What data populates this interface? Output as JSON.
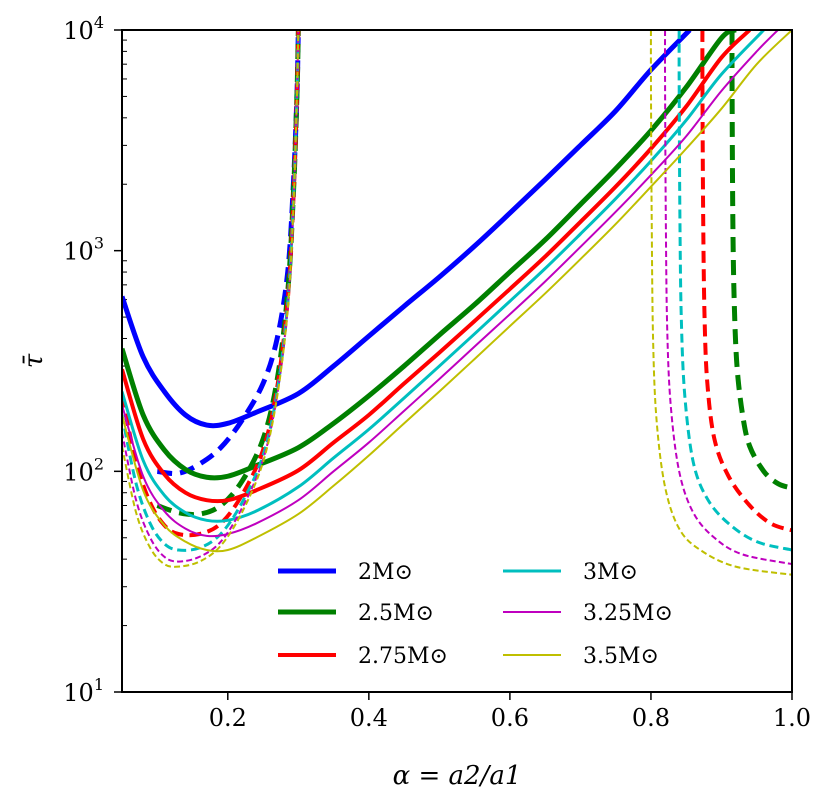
{
  "chart_data": {
    "type": "line",
    "title": "",
    "xlabel": "α = a2/a1",
    "ylabel": "τ̄",
    "xlim": [
      0.05,
      1.0
    ],
    "ylim": [
      10,
      10000
    ],
    "yscale": "log",
    "xticks": [
      {
        "value": 0.2,
        "label": "0.2"
      },
      {
        "value": 0.4,
        "label": "0.4"
      },
      {
        "value": 0.6,
        "label": "0.6"
      },
      {
        "value": 0.8,
        "label": "0.8"
      },
      {
        "value": 1.0,
        "label": "1.0"
      }
    ],
    "yticks": [
      {
        "value": 10,
        "base": "10",
        "exp": "1"
      },
      {
        "value": 100,
        "base": "10",
        "exp": "2"
      },
      {
        "value": 1000,
        "base": "10",
        "exp": "3"
      },
      {
        "value": 10000,
        "base": "10",
        "exp": "4"
      }
    ],
    "legend": {
      "position": "bottom-center",
      "columns": 2
    },
    "series": [
      {
        "name": "2M⊙",
        "mass": "2",
        "color": "#0000ff",
        "width": 5,
        "solid": [
          [
            0.05,
            620
          ],
          [
            0.08,
            330
          ],
          [
            0.11,
            230
          ],
          [
            0.14,
            180
          ],
          [
            0.17,
            162
          ],
          [
            0.2,
            165
          ],
          [
            0.24,
            185
          ],
          [
            0.3,
            225
          ],
          [
            0.35,
            300
          ],
          [
            0.4,
            410
          ],
          [
            0.45,
            560
          ],
          [
            0.5,
            760
          ],
          [
            0.55,
            1050
          ],
          [
            0.6,
            1480
          ],
          [
            0.65,
            2100
          ],
          [
            0.7,
            3000
          ],
          [
            0.75,
            4300
          ],
          [
            0.8,
            6600
          ],
          [
            0.855,
            10000
          ]
        ],
        "dashed_left": [
          [
            0.1,
            100
          ],
          [
            0.13,
            98
          ],
          [
            0.16,
            108
          ],
          [
            0.19,
            128
          ],
          [
            0.22,
            170
          ],
          [
            0.25,
            250
          ],
          [
            0.27,
            400
          ],
          [
            0.285,
            800
          ],
          [
            0.293,
            2000
          ],
          [
            0.298,
            5000
          ],
          [
            0.3,
            10000
          ]
        ],
        "dashed_right": []
      },
      {
        "name": "2.5M⊙",
        "mass": "2.5",
        "color": "#008000",
        "width": 5,
        "solid": [
          [
            0.05,
            360
          ],
          [
            0.08,
            180
          ],
          [
            0.11,
            125
          ],
          [
            0.14,
            102
          ],
          [
            0.17,
            94
          ],
          [
            0.2,
            95
          ],
          [
            0.24,
            106
          ],
          [
            0.3,
            128
          ],
          [
            0.35,
            165
          ],
          [
            0.4,
            220
          ],
          [
            0.45,
            300
          ],
          [
            0.5,
            415
          ],
          [
            0.55,
            570
          ],
          [
            0.6,
            800
          ],
          [
            0.65,
            1120
          ],
          [
            0.7,
            1620
          ],
          [
            0.75,
            2350
          ],
          [
            0.8,
            3500
          ],
          [
            0.85,
            5500
          ],
          [
            0.9,
            9200
          ],
          [
            0.92,
            10000
          ]
        ],
        "dashed_left": [
          [
            0.1,
            70
          ],
          [
            0.13,
            65
          ],
          [
            0.16,
            64
          ],
          [
            0.19,
            70
          ],
          [
            0.22,
            90
          ],
          [
            0.25,
            140
          ],
          [
            0.27,
            260
          ],
          [
            0.285,
            650
          ],
          [
            0.293,
            1800
          ],
          [
            0.298,
            5000
          ],
          [
            0.3,
            10000
          ]
        ],
        "dashed_right": [
          [
            0.915,
            10000
          ],
          [
            0.915,
            6000
          ],
          [
            0.916,
            1500
          ],
          [
            0.918,
            600
          ],
          [
            0.922,
            300
          ],
          [
            0.93,
            180
          ],
          [
            0.94,
            130
          ],
          [
            0.96,
            100
          ],
          [
            0.98,
            88
          ],
          [
            1.0,
            84
          ]
        ]
      },
      {
        "name": "2.75M⊙",
        "mass": "2.75",
        "color": "#ff0000",
        "width": 4,
        "solid": [
          [
            0.05,
            290
          ],
          [
            0.08,
            140
          ],
          [
            0.11,
            97
          ],
          [
            0.14,
            80
          ],
          [
            0.17,
            74
          ],
          [
            0.2,
            74
          ],
          [
            0.24,
            82
          ],
          [
            0.3,
            101
          ],
          [
            0.35,
            135
          ],
          [
            0.4,
            180
          ],
          [
            0.45,
            250
          ],
          [
            0.5,
            345
          ],
          [
            0.55,
            480
          ],
          [
            0.6,
            670
          ],
          [
            0.65,
            940
          ],
          [
            0.7,
            1350
          ],
          [
            0.75,
            1950
          ],
          [
            0.8,
            2900
          ],
          [
            0.85,
            4500
          ],
          [
            0.9,
            7500
          ],
          [
            0.94,
            10000
          ]
        ],
        "dashed_left": [
          [
            0.05,
            220
          ],
          [
            0.07,
            110
          ],
          [
            0.09,
            72
          ],
          [
            0.11,
            57
          ],
          [
            0.13,
            52
          ],
          [
            0.16,
            52
          ],
          [
            0.19,
            58
          ],
          [
            0.22,
            78
          ],
          [
            0.25,
            125
          ],
          [
            0.27,
            240
          ],
          [
            0.285,
            600
          ],
          [
            0.293,
            1700
          ],
          [
            0.298,
            5000
          ],
          [
            0.3,
            10000
          ]
        ],
        "dashed_right": [
          [
            0.873,
            10000
          ],
          [
            0.873,
            6000
          ],
          [
            0.874,
            1500
          ],
          [
            0.876,
            500
          ],
          [
            0.88,
            250
          ],
          [
            0.89,
            140
          ],
          [
            0.91,
            95
          ],
          [
            0.94,
            70
          ],
          [
            0.97,
            58
          ],
          [
            1.0,
            54
          ]
        ]
      },
      {
        "name": "3M⊙",
        "mass": "3",
        "color": "#00bfbf",
        "width": 3,
        "solid": [
          [
            0.05,
            230
          ],
          [
            0.08,
            112
          ],
          [
            0.11,
            78
          ],
          [
            0.14,
            65
          ],
          [
            0.17,
            60
          ],
          [
            0.2,
            60
          ],
          [
            0.24,
            66
          ],
          [
            0.3,
            85
          ],
          [
            0.35,
            115
          ],
          [
            0.4,
            155
          ],
          [
            0.45,
            215
          ],
          [
            0.5,
            300
          ],
          [
            0.55,
            420
          ],
          [
            0.6,
            590
          ],
          [
            0.65,
            830
          ],
          [
            0.7,
            1190
          ],
          [
            0.75,
            1720
          ],
          [
            0.8,
            2550
          ],
          [
            0.85,
            3900
          ],
          [
            0.9,
            6300
          ],
          [
            0.96,
            10000
          ]
        ],
        "dashed_left": [
          [
            0.05,
            180
          ],
          [
            0.07,
            88
          ],
          [
            0.09,
            58
          ],
          [
            0.11,
            47
          ],
          [
            0.13,
            44
          ],
          [
            0.16,
            45
          ],
          [
            0.19,
            52
          ],
          [
            0.22,
            72
          ],
          [
            0.25,
            118
          ],
          [
            0.27,
            230
          ],
          [
            0.285,
            580
          ],
          [
            0.293,
            1650
          ],
          [
            0.298,
            5000
          ],
          [
            0.3,
            10000
          ]
        ],
        "dashed_right": [
          [
            0.84,
            10000
          ],
          [
            0.84,
            6000
          ],
          [
            0.841,
            1500
          ],
          [
            0.843,
            500
          ],
          [
            0.848,
            220
          ],
          [
            0.86,
            110
          ],
          [
            0.88,
            75
          ],
          [
            0.91,
            58
          ],
          [
            0.95,
            48
          ],
          [
            1.0,
            44
          ]
        ]
      },
      {
        "name": "3.25M⊙",
        "mass": "3.25",
        "color": "#bf00bf",
        "width": 2,
        "solid": [
          [
            0.05,
            200
          ],
          [
            0.08,
            95
          ],
          [
            0.11,
            66
          ],
          [
            0.14,
            55
          ],
          [
            0.17,
            51
          ],
          [
            0.2,
            52
          ],
          [
            0.24,
            58
          ],
          [
            0.3,
            74
          ],
          [
            0.35,
            100
          ],
          [
            0.4,
            135
          ],
          [
            0.45,
            188
          ],
          [
            0.5,
            262
          ],
          [
            0.55,
            368
          ],
          [
            0.6,
            515
          ],
          [
            0.65,
            725
          ],
          [
            0.7,
            1040
          ],
          [
            0.75,
            1500
          ],
          [
            0.8,
            2200
          ],
          [
            0.85,
            3300
          ],
          [
            0.9,
            5300
          ],
          [
            0.95,
            8000
          ],
          [
            0.98,
            10000
          ]
        ],
        "dashed_left": [
          [
            0.05,
            150
          ],
          [
            0.07,
            74
          ],
          [
            0.09,
            50
          ],
          [
            0.11,
            41
          ],
          [
            0.13,
            39
          ],
          [
            0.16,
            41
          ],
          [
            0.19,
            48
          ],
          [
            0.22,
            68
          ],
          [
            0.25,
            113
          ],
          [
            0.27,
            222
          ],
          [
            0.285,
            560
          ],
          [
            0.293,
            1600
          ],
          [
            0.298,
            5000
          ],
          [
            0.3,
            10000
          ]
        ],
        "dashed_right": [
          [
            0.82,
            10000
          ],
          [
            0.82,
            6000
          ],
          [
            0.821,
            1500
          ],
          [
            0.823,
            450
          ],
          [
            0.828,
            200
          ],
          [
            0.84,
            100
          ],
          [
            0.86,
            65
          ],
          [
            0.89,
            50
          ],
          [
            0.93,
            42
          ],
          [
            1.0,
            38
          ]
        ]
      },
      {
        "name": "3.5M⊙",
        "mass": "3.5",
        "color": "#bfbf00",
        "width": 2,
        "solid": [
          [
            0.05,
            180
          ],
          [
            0.08,
            82
          ],
          [
            0.11,
            57
          ],
          [
            0.14,
            48
          ],
          [
            0.17,
            44
          ],
          [
            0.2,
            44
          ],
          [
            0.24,
            50
          ],
          [
            0.3,
            64
          ],
          [
            0.35,
            86
          ],
          [
            0.4,
            118
          ],
          [
            0.45,
            165
          ],
          [
            0.5,
            230
          ],
          [
            0.55,
            323
          ],
          [
            0.6,
            455
          ],
          [
            0.65,
            640
          ],
          [
            0.7,
            915
          ],
          [
            0.75,
            1320
          ],
          [
            0.8,
            1950
          ],
          [
            0.85,
            2900
          ],
          [
            0.9,
            4400
          ],
          [
            0.95,
            7000
          ],
          [
            1.0,
            10000
          ]
        ],
        "dashed_left": [
          [
            0.05,
            130
          ],
          [
            0.07,
            65
          ],
          [
            0.09,
            45
          ],
          [
            0.11,
            38
          ],
          [
            0.13,
            37
          ],
          [
            0.16,
            39
          ],
          [
            0.19,
            46
          ],
          [
            0.22,
            65
          ],
          [
            0.25,
            110
          ],
          [
            0.27,
            218
          ],
          [
            0.285,
            545
          ],
          [
            0.293,
            1550
          ],
          [
            0.298,
            5000
          ],
          [
            0.3,
            10000
          ]
        ],
        "dashed_right": [
          [
            0.8,
            10000
          ],
          [
            0.8,
            6000
          ],
          [
            0.801,
            1500
          ],
          [
            0.803,
            400
          ],
          [
            0.808,
            170
          ],
          [
            0.82,
            85
          ],
          [
            0.84,
            55
          ],
          [
            0.87,
            44
          ],
          [
            0.92,
            37
          ],
          [
            1.0,
            34
          ]
        ]
      }
    ]
  }
}
